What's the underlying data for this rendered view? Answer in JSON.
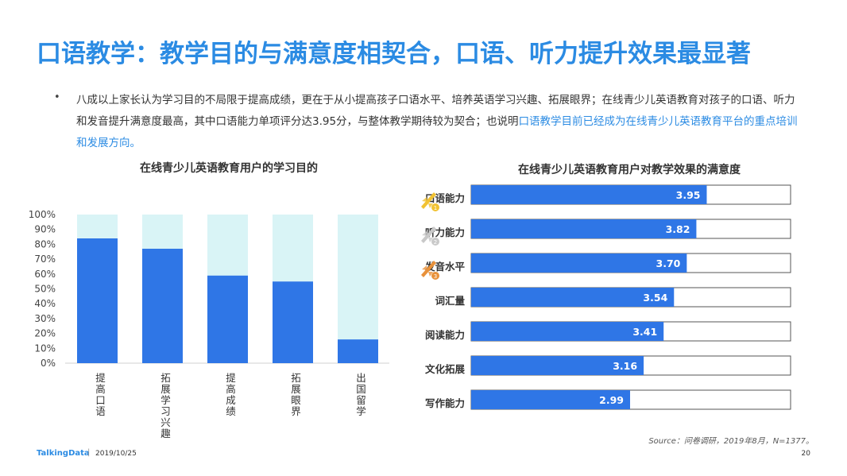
{
  "title": "口语教学：教学目的与满意度相契合，口语、听力提升效果最显著",
  "bullet": {
    "text_before": "八成以上家长认为学习目的不局限于提高成绩，更在于从小提高孩子口语水平、培养英语学习兴趣、拓展眼界；在线青少儿英语教育对孩子的口语、听力和发音提升满意度最高，其中口语能力单项评分达3.95分，与整体教学期待较为契合；也说明",
    "text_highlight": "口语教学目前已经成为在线青少儿英语教育平台的重点培训和发展方向。"
  },
  "colors": {
    "accent": "#2b8be3",
    "bar": "#2f76e6",
    "bar_light": "#d9f4f6"
  },
  "chart_data": [
    {
      "type": "bar",
      "stacked": true,
      "title": "在线青少儿英语教育用户的学习目的",
      "categories": [
        "提高口语",
        "拓展学习兴趣",
        "提高成绩",
        "拓展眼界",
        "出国留学"
      ],
      "series": [
        {
          "values": [
            84,
            77,
            59,
            55,
            16
          ]
        },
        {
          "values": [
            16,
            23,
            41,
            45,
            84
          ]
        }
      ],
      "yticks": [
        "0%",
        "10%",
        "20%",
        "30%",
        "40%",
        "50%",
        "60%",
        "70%",
        "80%",
        "90%",
        "100%"
      ],
      "ylim": [
        0,
        100
      ],
      "grid": false,
      "legend": "none"
    },
    {
      "type": "bar",
      "orientation": "horizontal",
      "title": "在线青少儿英语教育用户对教学效果的满意度",
      "categories": [
        "口语能力",
        "听力能力",
        "发音水平",
        "词汇量",
        "阅读能力",
        "文化拓展",
        "写作能力"
      ],
      "values": [
        3.95,
        3.82,
        3.7,
        3.54,
        3.41,
        3.16,
        2.99
      ],
      "value_labels": [
        "3.95",
        "3.82",
        "3.70",
        "3.54",
        "3.41",
        "3.16",
        "2.99"
      ],
      "xlim": [
        1.0,
        5.0
      ],
      "rank_badges": [
        "1",
        "2",
        "3"
      ],
      "rank_icons": [
        "gold-rocket-icon",
        "silver-rocket-icon",
        "bronze-rocket-icon"
      ],
      "rank_colors": [
        "#f1c232",
        "#c9c9c9",
        "#e8913a"
      ]
    }
  ],
  "source": "Source：问卷调研，2019年8月，N=1377。",
  "footer": {
    "logo": "TalkingData",
    "separator": "|",
    "date": "2019/10/25",
    "page": "20"
  }
}
